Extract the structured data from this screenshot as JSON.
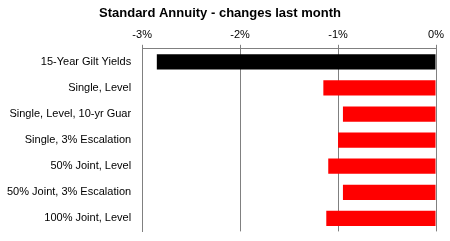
{
  "chart_data": {
    "type": "bar",
    "title": "Standard Annuity - changes last month",
    "orientation": "horizontal",
    "categories": [
      "15-Year Gilt Yields",
      "Single, Level",
      "Single, Level, 10-yr Guar",
      "Single, 3% Escalation",
      "50% Joint, Level",
      "50% Joint, 3% Escalation",
      "100% Joint, Level"
    ],
    "values": [
      -2.85,
      -1.15,
      -0.95,
      -1.0,
      -1.1,
      -0.95,
      -1.12
    ],
    "colors": [
      "#000000",
      "#ff0000",
      "#ff0000",
      "#ff0000",
      "#ff0000",
      "#ff0000",
      "#ff0000"
    ],
    "xlim": [
      -3,
      0
    ],
    "xticks": [
      {
        "value": -3,
        "label": "-3%"
      },
      {
        "value": -2,
        "label": "-2%"
      },
      {
        "value": -1,
        "label": "-1%"
      },
      {
        "value": 0,
        "label": "0%"
      }
    ],
    "grid": true
  }
}
